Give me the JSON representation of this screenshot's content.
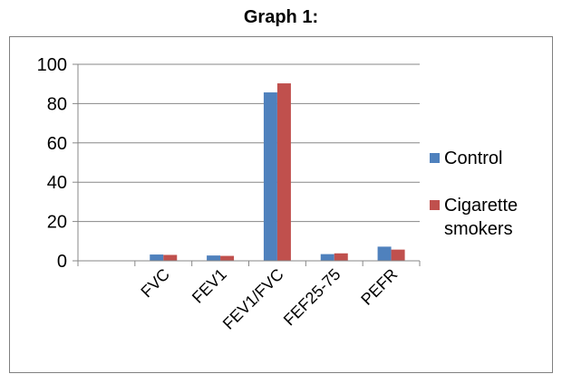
{
  "chart_data": {
    "type": "bar",
    "title": "Graph 1:",
    "categories": [
      "",
      "FVC",
      "FEV1",
      "FEV1/FVC",
      "FEF25-75",
      "PEFR"
    ],
    "series": [
      {
        "name": "Control",
        "values": [
          null,
          3.2,
          2.7,
          85.7,
          3.4,
          7.2
        ]
      },
      {
        "name": "Cigarette smokers",
        "values": [
          null,
          3.0,
          2.5,
          90.3,
          3.8,
          5.7
        ]
      }
    ],
    "ylim": [
      0,
      100
    ],
    "yticks": [
      0,
      20,
      40,
      60,
      80,
      100
    ],
    "grid": true,
    "legend_position": "right",
    "colors": {
      "Control": "#4F81BD",
      "Cigarette smokers": "#C0504D"
    }
  }
}
